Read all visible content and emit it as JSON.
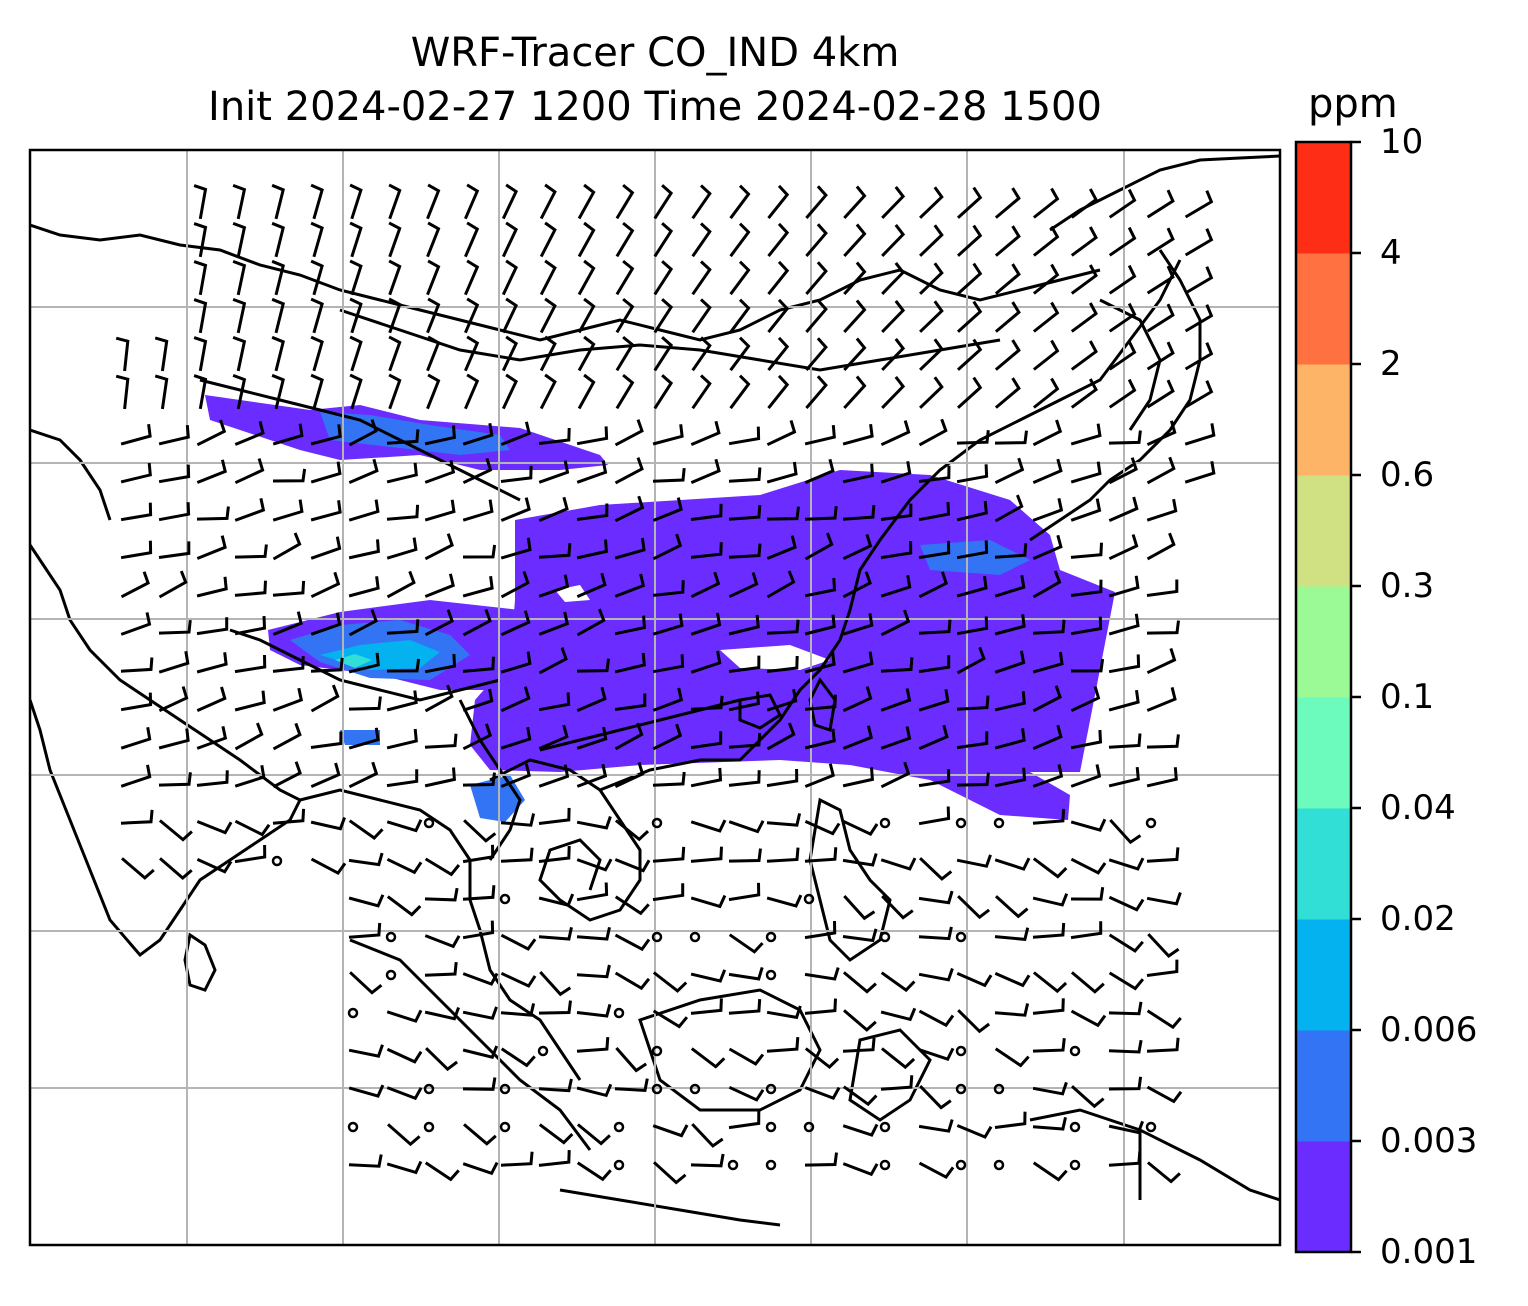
{
  "title": {
    "line1": "WRF-Tracer CO_IND 4km",
    "line2": "Init 2024-02-27 1200 Time 2024-02-28 1500"
  },
  "colorbar": {
    "unit": "ppm",
    "ticks": [
      "10",
      "4",
      "2",
      "0.6",
      "0.3",
      "0.1",
      "0.04",
      "0.02",
      "0.006",
      "0.003",
      "0.001"
    ],
    "colors": [
      "#6a2cff",
      "#3374f5",
      "#03b2ef",
      "#31dfd6",
      "#6cfbbd",
      "#9bfa96",
      "#d0e183",
      "#fdb466",
      "#ff7140",
      "#fe2e16"
    ]
  },
  "map": {
    "region": "South and Southeast Asia",
    "overlay": "wind barbs",
    "gridlines": true,
    "plume_color": "#6a2cff",
    "plume_secondary_color": "#3374f5",
    "plume_core_color": "#03b2ef"
  }
}
